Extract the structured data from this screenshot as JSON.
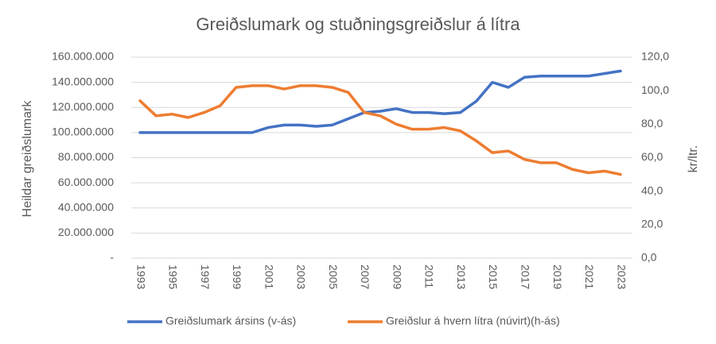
{
  "chart_data": {
    "type": "line",
    "title": "Greiðslumark og stuðningsgreiðslur á lítra",
    "y_label": "Heildar greiðslumark",
    "y2_label": "kr/ltr.",
    "x": [
      1993,
      1994,
      1995,
      1996,
      1997,
      1998,
      1999,
      2000,
      2001,
      2002,
      2003,
      2004,
      2005,
      2006,
      2007,
      2008,
      2009,
      2010,
      2011,
      2012,
      2013,
      2014,
      2015,
      2016,
      2017,
      2018,
      2019,
      2020,
      2021,
      2022,
      2023
    ],
    "xlim": [
      1993,
      2023
    ],
    "xticks": [
      1993,
      1995,
      1997,
      1999,
      2001,
      2003,
      2005,
      2007,
      2009,
      2011,
      2013,
      2015,
      2017,
      2019,
      2021,
      2023
    ],
    "ylim": [
      0,
      160000000
    ],
    "yticks": [
      {
        "value": 0,
        "label": "-"
      },
      {
        "value": 20000000,
        "label": "20.000.000"
      },
      {
        "value": 40000000,
        "label": "40.000.000"
      },
      {
        "value": 60000000,
        "label": "60.000.000"
      },
      {
        "value": 80000000,
        "label": "80.000.000"
      },
      {
        "value": 100000000,
        "label": "100.000.000"
      },
      {
        "value": 120000000,
        "label": "120.000.000"
      },
      {
        "value": 140000000,
        "label": "140.000.000"
      },
      {
        "value": 160000000,
        "label": "160.000.000"
      }
    ],
    "y2lim": [
      0,
      120
    ],
    "y2ticks": [
      {
        "value": 0,
        "label": "0,0"
      },
      {
        "value": 20,
        "label": "20,0"
      },
      {
        "value": 40,
        "label": "40,0"
      },
      {
        "value": 60,
        "label": "60,0"
      },
      {
        "value": 80,
        "label": "80,0"
      },
      {
        "value": 100,
        "label": "100,0"
      },
      {
        "value": 120,
        "label": "120,0"
      }
    ],
    "grid": true,
    "legend": "bottom",
    "series": [
      {
        "name": "Greiðslumark ársins (v-ás)",
        "color": "#4472c4",
        "values": [
          100000000,
          100000000,
          100000000,
          100000000,
          100000000,
          100000000,
          100000000,
          100000000,
          104000000,
          106000000,
          106000000,
          105000000,
          106000000,
          111000000,
          116000000,
          117000000,
          119000000,
          116000000,
          116000000,
          115000000,
          116000000,
          125000000,
          140000000,
          136000000,
          144000000,
          145000000,
          145000000,
          145000000,
          145000000,
          147000000,
          149000000
        ]
      },
      {
        "name": "Greiðslur á hvern lítra (núvirt)(h-ás)",
        "color": "#ed7d31",
        "axis": "y2",
        "values": [
          94,
          85,
          86,
          84,
          87,
          91,
          102,
          103,
          103,
          101,
          103,
          103,
          102,
          99,
          87,
          85,
          80,
          77,
          77,
          78,
          76,
          70,
          63,
          64,
          59,
          57,
          57,
          53,
          51,
          52,
          50
        ]
      }
    ]
  }
}
